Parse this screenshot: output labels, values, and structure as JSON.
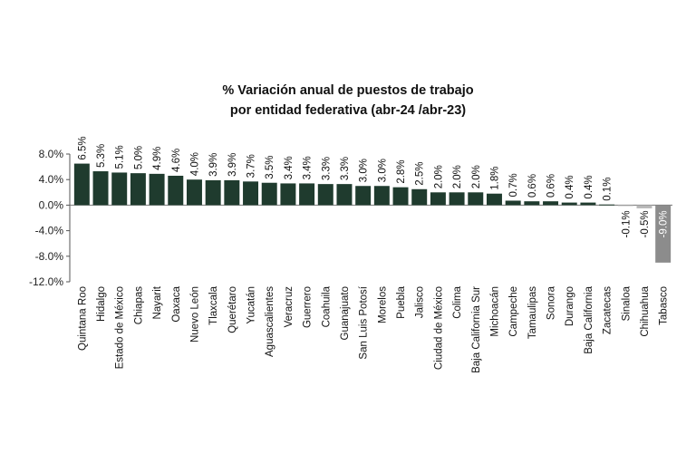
{
  "chart_data": {
    "type": "bar",
    "title": "% Variación anual de puestos de trabajo",
    "subtitle": "por entidad federativa (abr-24 /abr-23)",
    "xlabel": "",
    "ylabel": "",
    "ylim": [
      -12,
      8
    ],
    "yticks": [
      "8.0%",
      "4.0%",
      "0.0%",
      "-4.0%",
      "-8.0%",
      "-12.0%"
    ],
    "ytick_values": [
      8,
      4,
      0,
      -4,
      -8,
      -12
    ],
    "grid": false,
    "legend": "none",
    "categories": [
      "Quintana Roo",
      "Hidalgo",
      "Estado de México",
      "Chiapas",
      "Nayarit",
      "Oaxaca",
      "Nuevo León",
      "Tlaxcala",
      "Querétaro",
      "Yucatán",
      "Aguascalientes",
      "Veracruz",
      "Guerrero",
      "Coahuila",
      "Guanajuato",
      "San Luis Potosí",
      "Morelos",
      "Puebla",
      "Jalisco",
      "Ciudad de México",
      "Colima",
      "Baja California Sur",
      "Michoacán",
      "Campeche",
      "Tamaulipas",
      "Sonora",
      "Durango",
      "Baja California",
      "Zacatecas",
      "Sinaloa",
      "Chihuahua",
      "Tabasco"
    ],
    "values": [
      6.5,
      5.3,
      5.1,
      5.0,
      4.9,
      4.6,
      4.0,
      3.9,
      3.9,
      3.7,
      3.5,
      3.4,
      3.4,
      3.3,
      3.3,
      3.0,
      3.0,
      2.8,
      2.5,
      2.0,
      2.0,
      2.0,
      1.8,
      0.7,
      0.6,
      0.6,
      0.4,
      0.4,
      0.1,
      -0.1,
      -0.5,
      -9.0
    ],
    "data_labels": [
      "6.5%",
      "5.3%",
      "5.1%",
      "5.0%",
      "4.9%",
      "4.6%",
      "4.0%",
      "3.9%",
      "3.9%",
      "3.7%",
      "3.5%",
      "3.4%",
      "3.4%",
      "3.3%",
      "3.3%",
      "3.0%",
      "3.0%",
      "2.8%",
      "2.5%",
      "2.0%",
      "2.0%",
      "2.0%",
      "1.8%",
      "0.7%",
      "0.6%",
      "0.6%",
      "0.4%",
      "0.4%",
      "0.1%",
      "-0.1%",
      "-0.5%",
      "-9.0%"
    ],
    "colors": {
      "positive": "#1f3b2e",
      "negative": "#b8b8b8",
      "highlight": "#8c8c8c"
    }
  }
}
